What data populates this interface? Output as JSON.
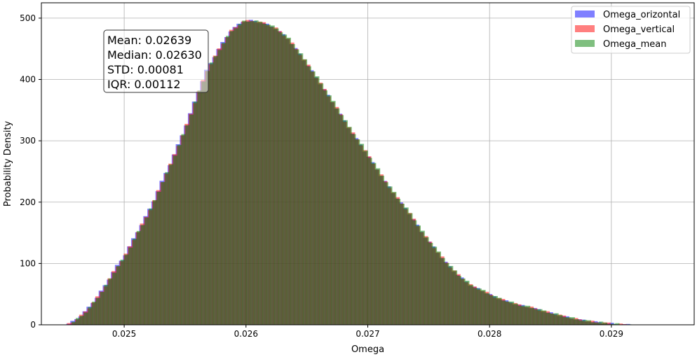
{
  "chart_data": {
    "type": "histogram",
    "xlabel": "Omega",
    "ylabel": "Probability Density",
    "xlim": [
      0.02432,
      0.02968
    ],
    "ylim": [
      0,
      525
    ],
    "x_ticks": [
      0.025,
      0.026,
      0.027,
      0.028,
      0.029
    ],
    "x_tick_labels": [
      "0.025",
      "0.026",
      "0.027",
      "0.028",
      "0.029"
    ],
    "y_ticks": [
      0,
      100,
      200,
      300,
      400,
      500
    ],
    "y_tick_labels": [
      "0",
      "100",
      "200",
      "300",
      "400",
      "500"
    ],
    "grid": true,
    "legend_position": "top-right",
    "series": [
      {
        "name": "Omega_orizontal",
        "color": "#0000ff",
        "alpha": 0.5,
        "x_offset": -6e-06
      },
      {
        "name": "Omega_vertical",
        "color": "#ff0000",
        "alpha": 0.5,
        "x_offset": 0.0
      },
      {
        "name": "Omega_mean",
        "color": "#008000",
        "alpha": 0.5,
        "x_offset": 6e-06
      }
    ],
    "histogram": {
      "bin_width": 3.33e-05,
      "profile": [
        [
          0.02453,
          0
        ],
        [
          0.02458,
          5
        ],
        [
          0.02463,
          12
        ],
        [
          0.0247,
          25
        ],
        [
          0.02478,
          45
        ],
        [
          0.02485,
          65
        ],
        [
          0.02493,
          92
        ],
        [
          0.025,
          110
        ],
        [
          0.02508,
          140
        ],
        [
          0.02515,
          165
        ],
        [
          0.02523,
          195
        ],
        [
          0.0253,
          228
        ],
        [
          0.02538,
          262
        ],
        [
          0.02545,
          295
        ],
        [
          0.02553,
          335
        ],
        [
          0.0256,
          375
        ],
        [
          0.02568,
          415
        ],
        [
          0.02578,
          450
        ],
        [
          0.02588,
          480
        ],
        [
          0.02598,
          495
        ],
        [
          0.02605,
          496
        ],
        [
          0.02615,
          492
        ],
        [
          0.02625,
          483
        ],
        [
          0.02635,
          466
        ],
        [
          0.02645,
          440
        ],
        [
          0.02655,
          412
        ],
        [
          0.02665,
          382
        ],
        [
          0.02675,
          352
        ],
        [
          0.02685,
          320
        ],
        [
          0.02695,
          292
        ],
        [
          0.02705,
          262
        ],
        [
          0.02715,
          232
        ],
        [
          0.02725,
          205
        ],
        [
          0.02735,
          180
        ],
        [
          0.02745,
          150
        ],
        [
          0.02755,
          125
        ],
        [
          0.02765,
          100
        ],
        [
          0.02775,
          80
        ],
        [
          0.02785,
          64
        ],
        [
          0.02795,
          55
        ],
        [
          0.02805,
          45
        ],
        [
          0.02815,
          38
        ],
        [
          0.02825,
          32
        ],
        [
          0.02835,
          28
        ],
        [
          0.02845,
          22
        ],
        [
          0.02855,
          17
        ],
        [
          0.02865,
          12
        ],
        [
          0.02875,
          8
        ],
        [
          0.02885,
          5
        ],
        [
          0.02895,
          3
        ],
        [
          0.02905,
          1
        ],
        [
          0.02915,
          0
        ]
      ]
    },
    "stats_box": [
      "Mean: 0.02639",
      "Median: 0.02630",
      "STD: 0.00081",
      "IQR: 0.00112"
    ]
  }
}
